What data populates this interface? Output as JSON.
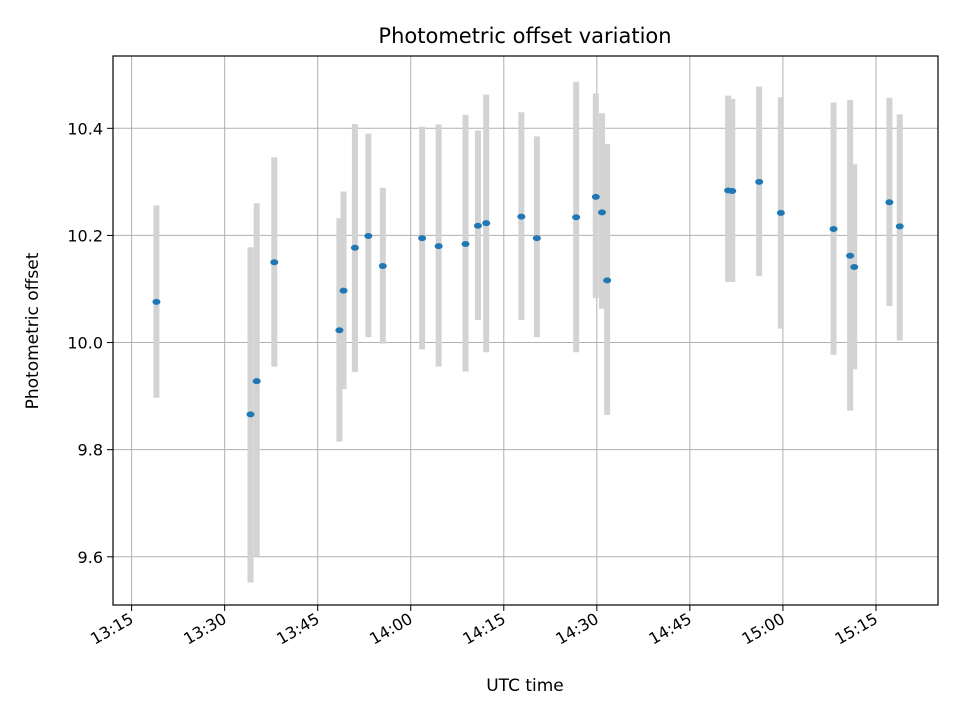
{
  "chart_data": {
    "type": "scatter",
    "title": "Photometric offset variation",
    "xlabel": "UTC time",
    "ylabel": "Photometric offset",
    "xlim": [
      "13:12",
      "15:25"
    ],
    "ylim": [
      9.51,
      10.535
    ],
    "x_ticks": [
      "13:15",
      "13:30",
      "13:45",
      "14:00",
      "14:15",
      "14:30",
      "14:45",
      "15:00",
      "15:15"
    ],
    "y_ticks": [
      9.6,
      9.8,
      10.0,
      10.2,
      10.4
    ],
    "y_tick_labels": [
      "9.6",
      "9.8",
      "10.0",
      "10.2",
      "10.4"
    ],
    "grid": true,
    "marker_color": "#1f77b4",
    "errorbar_color": "#d3d3d3",
    "points": [
      {
        "t": "13:19:00",
        "y": 10.076,
        "ylo": 9.897,
        "yhi": 10.256
      },
      {
        "t": "13:34:10",
        "y": 9.866,
        "ylo": 9.552,
        "yhi": 10.178
      },
      {
        "t": "13:35:10",
        "y": 9.928,
        "ylo": 9.6,
        "yhi": 10.26
      },
      {
        "t": "13:38:00",
        "y": 10.15,
        "ylo": 9.955,
        "yhi": 10.346
      },
      {
        "t": "13:48:30",
        "y": 10.023,
        "ylo": 9.815,
        "yhi": 10.232
      },
      {
        "t": "13:49:10",
        "y": 10.097,
        "ylo": 9.913,
        "yhi": 10.282
      },
      {
        "t": "13:51:00",
        "y": 10.177,
        "ylo": 9.945,
        "yhi": 10.408
      },
      {
        "t": "13:53:10",
        "y": 10.199,
        "ylo": 10.01,
        "yhi": 10.39
      },
      {
        "t": "13:55:30",
        "y": 10.143,
        "ylo": 9.998,
        "yhi": 10.289
      },
      {
        "t": "14:01:50",
        "y": 10.195,
        "ylo": 9.987,
        "yhi": 10.403
      },
      {
        "t": "14:04:30",
        "y": 10.18,
        "ylo": 9.955,
        "yhi": 10.407
      },
      {
        "t": "14:08:50",
        "y": 10.184,
        "ylo": 9.946,
        "yhi": 10.425
      },
      {
        "t": "14:10:50",
        "y": 10.218,
        "ylo": 10.042,
        "yhi": 10.396
      },
      {
        "t": "14:12:10",
        "y": 10.223,
        "ylo": 9.982,
        "yhi": 10.463
      },
      {
        "t": "14:17:50",
        "y": 10.235,
        "ylo": 10.042,
        "yhi": 10.43
      },
      {
        "t": "14:20:20",
        "y": 10.195,
        "ylo": 10.01,
        "yhi": 10.385
      },
      {
        "t": "14:26:40",
        "y": 10.234,
        "ylo": 9.982,
        "yhi": 10.487
      },
      {
        "t": "14:29:50",
        "y": 10.272,
        "ylo": 10.083,
        "yhi": 10.465
      },
      {
        "t": "14:30:50",
        "y": 10.243,
        "ylo": 10.063,
        "yhi": 10.428
      },
      {
        "t": "14:31:40",
        "y": 10.116,
        "ylo": 9.865,
        "yhi": 10.371
      },
      {
        "t": "14:51:10",
        "y": 10.284,
        "ylo": 10.113,
        "yhi": 10.461
      },
      {
        "t": "14:51:50",
        "y": 10.283,
        "ylo": 10.113,
        "yhi": 10.455
      },
      {
        "t": "14:56:10",
        "y": 10.3,
        "ylo": 10.124,
        "yhi": 10.478
      },
      {
        "t": "14:59:40",
        "y": 10.242,
        "ylo": 10.026,
        "yhi": 10.458
      },
      {
        "t": "15:08:10",
        "y": 10.212,
        "ylo": 9.977,
        "yhi": 10.448
      },
      {
        "t": "15:10:50",
        "y": 10.162,
        "ylo": 9.873,
        "yhi": 10.453
      },
      {
        "t": "15:11:30",
        "y": 10.141,
        "ylo": 9.95,
        "yhi": 10.333
      },
      {
        "t": "15:17:10",
        "y": 10.262,
        "ylo": 10.068,
        "yhi": 10.457
      },
      {
        "t": "15:18:50",
        "y": 10.217,
        "ylo": 10.004,
        "yhi": 10.426
      }
    ]
  }
}
